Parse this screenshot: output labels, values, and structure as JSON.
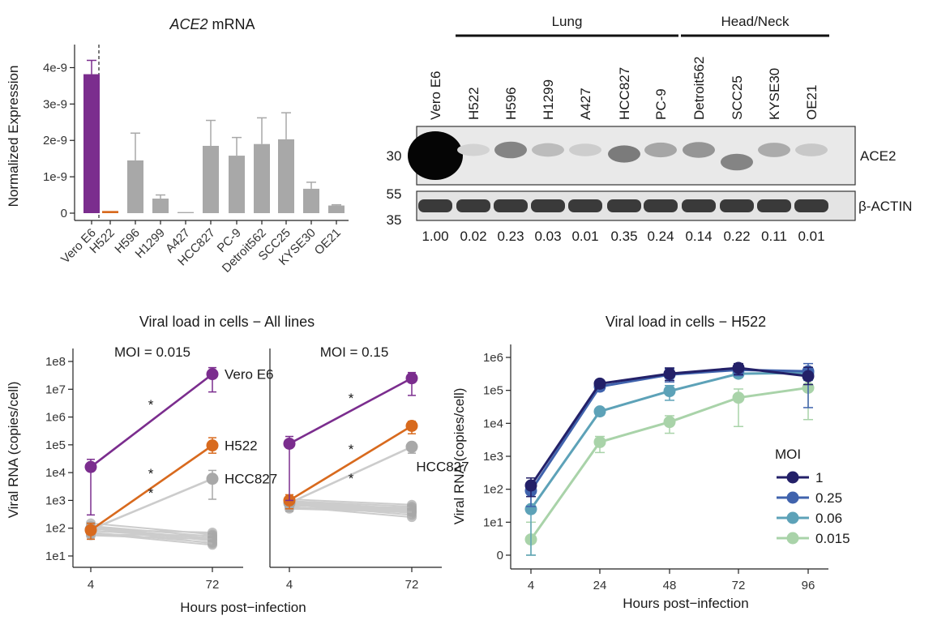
{
  "colors": {
    "purple": "#7b2d8e",
    "orange": "#d86a1e",
    "gray": "#a8a8a8",
    "lightgray": "#cccccc",
    "moi_1": "#232068",
    "moi_025": "#4063ad",
    "moi_006": "#5da2b8",
    "moi_0015": "#a9d3a9"
  },
  "chart_data": [
    {
      "type": "bar",
      "title_italic": "ACE2",
      "title_rest": " mRNA",
      "ylabel": "Normalized Expression",
      "ylim": [
        0,
        4.3e-09
      ],
      "yticks": [
        0,
        1e-09,
        2e-09,
        3e-09,
        4e-09
      ],
      "ytick_labels": [
        "0",
        "1e-9",
        "2e-9",
        "3e-9",
        "4e-9"
      ],
      "categories": [
        "Vero E6",
        "H522",
        "H596",
        "H1299",
        "A427",
        "HCC827",
        "PC-9",
        "Detroit562",
        "SCC25",
        "KYSE30",
        "OE21"
      ],
      "values": [
        3.82e-09,
        6e-11,
        1.45e-09,
        4e-10,
        3e-11,
        1.85e-09,
        1.58e-09,
        1.9e-09,
        2.03e-09,
        6.7e-10,
        2.1e-10
      ],
      "errors": [
        3.8e-10,
        0.0,
        7.5e-10,
        1e-10,
        0.0,
        7e-10,
        5e-10,
        7.2e-10,
        7.3e-10,
        1.8e-10,
        2e-11
      ],
      "bar_colors": [
        "purple",
        "orange",
        "gray",
        "gray",
        "gray",
        "gray",
        "gray",
        "gray",
        "gray",
        "gray",
        "gray"
      ]
    },
    {
      "type": "western-blot",
      "groups": [
        {
          "label": "Lung",
          "from": 1,
          "to": 6
        },
        {
          "label": "Head/Neck",
          "from": 7,
          "to": 10
        }
      ],
      "lanes": [
        "Vero E6",
        "H522",
        "H596",
        "H1299",
        "A427",
        "HCC827",
        "PC-9",
        "Detroit562",
        "SCC25",
        "KYSE30",
        "OE21"
      ],
      "markers_top": [
        "30"
      ],
      "markers_bottom": [
        "55",
        "35"
      ],
      "band_labels": [
        "ACE2",
        "β-ACTIN"
      ],
      "quantification": [
        "1.00",
        "0.02",
        "0.23",
        "0.03",
        "0.01",
        "0.35",
        "0.24",
        "0.14",
        "0.22",
        "0.11",
        "0.01"
      ],
      "ace2_intensity": [
        1.0,
        0.08,
        0.55,
        0.22,
        0.12,
        0.6,
        0.35,
        0.45,
        0.55,
        0.32,
        0.15
      ]
    },
    {
      "type": "line",
      "title": "Viral load in cells − All lines",
      "xlabel": "Hours post−infection",
      "ylabel": "Viral RNA (copies/cell)",
      "ytick_labels": [
        "1e1",
        "1e2",
        "1e3",
        "1e4",
        "1e5",
        "1e6",
        "1e7",
        "1e8"
      ],
      "ylog_range": [
        1,
        8
      ],
      "x": [
        4,
        72
      ],
      "significance_mark": "*",
      "panels": [
        {
          "moi_label": "MOI = 0.015",
          "series": [
            {
              "label": "Vero E6",
              "color": "purple",
              "y": [
                16000,
                35000000
              ],
              "err_lo": [
                300,
                8000000
              ],
              "err_hi": [
                30000,
                60000000
              ]
            },
            {
              "label": "H522",
              "color": "orange",
              "y": [
                85,
                95000
              ],
              "err_lo": [
                40,
                50000
              ],
              "err_hi": [
                150,
                180000
              ]
            },
            {
              "label": "HCC827",
              "color": "gray",
              "y": [
                90,
                6000
              ],
              "err_lo": [
                40,
                1100
              ],
              "err_hi": [
                160,
                12000
              ]
            }
          ],
          "other_lines": [
            [
              150,
              60
            ],
            [
              120,
              50
            ],
            [
              110,
              40
            ],
            [
              100,
              35
            ],
            [
              90,
              70
            ],
            [
              80,
              45
            ],
            [
              70,
              30
            ],
            [
              65,
              25
            ],
            [
              60,
              55
            ],
            [
              55,
              40
            ],
            [
              100,
              28
            ]
          ]
        },
        {
          "moi_label": "MOI = 0.15",
          "series": [
            {
              "label": "",
              "color": "purple",
              "y": [
                110000,
                25000000
              ],
              "err_lo": [
                1000,
                6000000
              ],
              "err_hi": [
                200000,
                40000000
              ]
            },
            {
              "label": "",
              "color": "orange",
              "y": [
                1000,
                480000
              ],
              "err_lo": [
                500,
                250000
              ],
              "err_hi": [
                1600,
                700000
              ]
            },
            {
              "label": "HCC827",
              "color": "gray",
              "y": [
                800,
                85000
              ],
              "err_lo": [
                400,
                50000
              ],
              "err_hi": [
                1200,
                120000
              ]
            }
          ],
          "other_lines": [
            [
              1100,
              700
            ],
            [
              950,
              600
            ],
            [
              900,
              500
            ],
            [
              850,
              450
            ],
            [
              800,
              400
            ],
            [
              750,
              350
            ],
            [
              700,
              300
            ],
            [
              650,
              550
            ],
            [
              600,
              250
            ],
            [
              550,
              420
            ],
            [
              500,
              380
            ]
          ]
        }
      ]
    },
    {
      "type": "line",
      "title": "Viral load in cells − H522",
      "xlabel": "Hours post−infection",
      "ylabel": "Viral RNA (copies/cell)",
      "ytick_labels": [
        "0",
        "1e1",
        "1e2",
        "1e3",
        "1e4",
        "1e5",
        "1e6"
      ],
      "ylog_range": [
        0,
        6
      ],
      "x": [
        4,
        24,
        48,
        72,
        96
      ],
      "legend_title": "MOI",
      "legend_position": "bottom-right",
      "series": [
        {
          "name": "1",
          "color": "moi_1",
          "y": [
            130,
            160000,
            320000,
            480000,
            270000
          ],
          "err_lo": [
            60,
            120000,
            200000,
            300000,
            150000
          ],
          "err_hi": [
            220,
            200000,
            480000,
            650000,
            500000
          ]
        },
        {
          "name": "0.25",
          "color": "moi_025",
          "y": [
            90,
            130000,
            300000,
            420000,
            380000
          ],
          "err_lo": [
            30,
            100000,
            180000,
            280000,
            30000
          ],
          "err_hi": [
            150,
            160000,
            450000,
            600000,
            650000
          ]
        },
        {
          "name": "0.06",
          "color": "moi_006",
          "y": [
            25,
            23000,
            95000,
            320000,
            340000
          ],
          "err_lo": [
            1,
            18000,
            50000,
            250000,
            200000
          ],
          "err_hi": [
            60,
            28000,
            140000,
            500000,
            480000
          ]
        },
        {
          "name": "0.015",
          "color": "moi_0015",
          "y": [
            3,
            2700,
            11000,
            60000,
            120000
          ],
          "err_lo": [
            0.5,
            1300,
            5000,
            8000,
            13000
          ],
          "err_hi": [
            10,
            4000,
            17000,
            110000,
            230000
          ]
        }
      ]
    }
  ]
}
